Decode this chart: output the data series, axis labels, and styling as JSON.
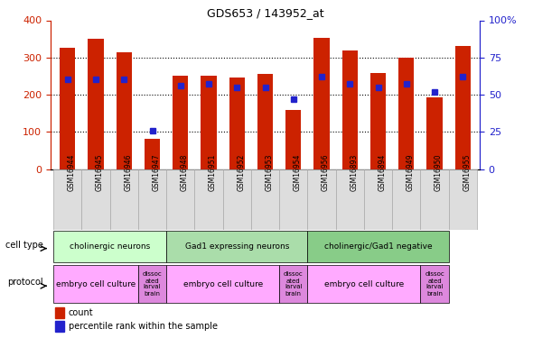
{
  "title": "GDS653 / 143952_at",
  "samples": [
    "GSM16944",
    "GSM16945",
    "GSM16946",
    "GSM16947",
    "GSM16948",
    "GSM16951",
    "GSM16952",
    "GSM16953",
    "GSM16954",
    "GSM16956",
    "GSM16893",
    "GSM16894",
    "GSM16949",
    "GSM16950",
    "GSM16955"
  ],
  "counts": [
    325,
    350,
    315,
    82,
    250,
    250,
    245,
    255,
    160,
    352,
    318,
    258,
    300,
    192,
    330
  ],
  "percentile_ranks": [
    60,
    60,
    60,
    26,
    56,
    57,
    55,
    55,
    47,
    62,
    57,
    55,
    57,
    52,
    62
  ],
  "bar_color": "#cc2200",
  "dot_color": "#2222cc",
  "ylim_left": [
    0,
    400
  ],
  "ylim_right": [
    0,
    100
  ],
  "yticks_left": [
    0,
    100,
    200,
    300,
    400
  ],
  "yticks_right": [
    0,
    25,
    50,
    75,
    100
  ],
  "ylabel_left_color": "#cc2200",
  "ylabel_right_color": "#2222cc",
  "cell_type_groups": [
    [
      0,
      4,
      "cholinergic neurons",
      "#ccffcc"
    ],
    [
      4,
      9,
      "Gad1 expressing neurons",
      "#aaddaa"
    ],
    [
      9,
      14,
      "cholinergic/Gad1 negative",
      "#88cc88"
    ]
  ],
  "protocol_groups": [
    [
      0,
      3,
      "embryo cell culture",
      "#ffaaff"
    ],
    [
      3,
      4,
      "dissoc\nated\nlarval\nbrain",
      "#dd88dd"
    ],
    [
      4,
      8,
      "embryo cell culture",
      "#ffaaff"
    ],
    [
      8,
      9,
      "dissoc\nated\nlarval\nbrain",
      "#dd88dd"
    ],
    [
      9,
      13,
      "embryo cell culture",
      "#ffaaff"
    ],
    [
      13,
      14,
      "dissoc\nated\nlarval\nbrain",
      "#dd88dd"
    ]
  ],
  "legend_count_label": "count",
  "legend_pct_label": "percentile rank within the sample"
}
